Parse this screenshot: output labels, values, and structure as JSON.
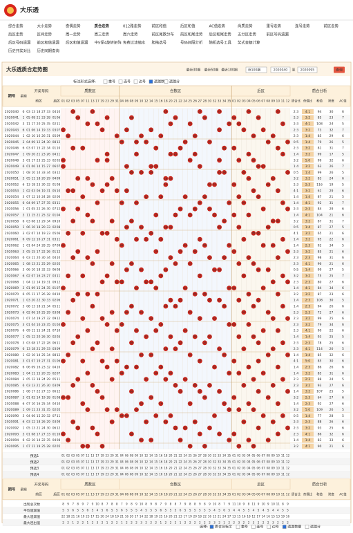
{
  "header": {
    "title": "大乐透"
  },
  "nav": [
    [
      "综合走势",
      "大小走势",
      "奇偶走势",
      "质合走势",
      "012路走势",
      "前区和值",
      "后区和值",
      "AC值走势",
      "尚质走势",
      "重号走势",
      "连号走势",
      "前区走势"
    ],
    [
      "后区走势",
      "区间走势",
      "周一走势",
      "周三走势",
      "周六走势",
      "前区尾数分布",
      "前区和尾走势",
      "后区和尾走势",
      "五分区走势",
      "前区号码遗漏"
    ],
    [
      "后区号码遗漏",
      "前区和值遗漏",
      "后区和值遗漏",
      "中5保4旋转矩阵",
      "免费过滤缩水",
      "胆拖选号",
      "号码间隔分析",
      "随机选号工具",
      "奖式金额计算"
    ],
    [
      "历史开奖对比",
      "历史同期查询"
    ]
  ],
  "panel": {
    "title": "大乐透质合走势图",
    "range_links": [
      "最近30期",
      "最近50期",
      "最近100期"
    ],
    "select": "近100期",
    "from": "2020040",
    "to_label": "至",
    "to": "2020095",
    "query": "查询",
    "mark_label": "标注形式选择:",
    "mark_options": [
      "重号",
      "连号",
      "边号",
      "遗漏数据",
      "遗漏分"
    ]
  },
  "table": {
    "head": {
      "issue": "期号",
      "week": "星期",
      "draw": "开奖号码",
      "front": "前区",
      "back": "后区",
      "zones": [
        "质数区",
        "合数区",
        "后区"
      ],
      "analysis": "质合分析",
      "analysis_cols": [
        "质合比",
        "奇偶比",
        "和值",
        "跨度",
        "AC值"
      ]
    },
    "columns": {
      "prime": [
        "01",
        "02",
        "03",
        "05",
        "07",
        "11",
        "13",
        "17",
        "19",
        "23",
        "29",
        "31"
      ],
      "composite": [
        "04",
        "06",
        "08",
        "09",
        "10",
        "12",
        "14",
        "15",
        "16",
        "18",
        "20",
        "21",
        "22",
        "24",
        "25",
        "26",
        "27",
        "28",
        "30",
        "32",
        "33",
        "34",
        "35"
      ],
      "back": [
        "01",
        "02",
        "03",
        "04",
        "05",
        "06",
        "07",
        "08",
        "09",
        "10",
        "11",
        "12"
      ]
    },
    "rows": [
      [
        "2020040",
        6,
        [
          "03",
          "13",
          "18",
          "27",
          "33"
        ],
        [
          "04",
          "10"
        ],
        "2:3",
        "4:1",
        94,
        30,
        6
      ],
      [
        "2020041",
        1,
        [
          "05",
          "08",
          "21",
          "23",
          "28"
        ],
        [
          "01",
          "06"
        ],
        "2:3",
        "3:2",
        85,
        23,
        7
      ],
      [
        "2020042",
        3,
        [
          "11",
          "17",
          "20",
          "25",
          "35"
        ],
        [
          "02",
          "11"
        ],
        "2:3",
        "4:1",
        108,
        24,
        5
      ],
      [
        "2020043",
        6,
        [
          "01",
          "06",
          "14",
          "19",
          "33"
        ],
        [
          "03",
          "07"
        ],
        "2:3",
        "3:2",
        73,
        32,
        7
      ],
      [
        "2020044",
        1,
        [
          "02",
          "10",
          "16",
          "26",
          "31"
        ],
        [
          "05",
          "09"
        ],
        "2:3",
        "1:4",
        85,
        29,
        6
      ],
      [
        "2020045",
        3,
        [
          "04",
          "09",
          "12",
          "24",
          "30"
        ],
        [
          "08",
          "12"
        ],
        "0:5",
        "1:4",
        79,
        26,
        5
      ],
      [
        "2020046",
        6,
        [
          "03",
          "07",
          "15",
          "22",
          "34"
        ],
        [
          "01",
          "10"
        ],
        "2:3",
        "3:2",
        81,
        31,
        7
      ],
      [
        "2020047",
        1,
        [
          "09",
          "20",
          "21",
          "23",
          "26"
        ],
        [
          "04",
          "11"
        ],
        "1:4",
        "3:2",
        99,
        17,
        5
      ],
      [
        "2020048",
        3,
        [
          "01",
          "17",
          "23",
          "25",
          "33"
        ],
        [
          "02",
          "05"
        ],
        "3:2",
        "5:0",
        99,
        32,
        6
      ],
      [
        "2020049",
        6,
        [
          "01",
          "06",
          "14",
          "15",
          "27"
        ],
        [
          "06",
          "07"
        ],
        "1:4",
        "3:2",
        63,
        26,
        7
      ],
      [
        "2020050",
        1,
        [
          "08",
          "10",
          "14",
          "33",
          "34"
        ],
        [
          "03",
          "12"
        ],
        "0:5",
        "1:4",
        99,
        26,
        5
      ],
      [
        "2020051",
        3,
        [
          "05",
          "11",
          "18",
          "20",
          "29"
        ],
        [
          "04",
          "09"
        ],
        "3:2",
        "3:2",
        83,
        24,
        6
      ],
      [
        "2020052",
        6,
        [
          "13",
          "18",
          "23",
          "30",
          "32"
        ],
        [
          "01",
          "08"
        ],
        "2:3",
        "2:3",
        116,
        19,
        5
      ],
      [
        "2020053",
        1,
        [
          "02",
          "03",
          "06",
          "19",
          "31"
        ],
        [
          "05",
          "10"
        ],
        "4:1",
        "3:2",
        61,
        29,
        6
      ],
      [
        "2020054",
        3,
        [
          "07",
          "12",
          "16",
          "24",
          "28"
        ],
        [
          "02",
          "06"
        ],
        "1:4",
        "1:4",
        87,
        21,
        5
      ],
      [
        "2020055",
        6,
        [
          "04",
          "09",
          "17",
          "27",
          "35"
        ],
        [
          "03",
          "11"
        ],
        "1:4",
        "4:1",
        92,
        31,
        7
      ],
      [
        "2020056",
        1,
        [
          "01",
          "05",
          "22",
          "26",
          "30"
        ],
        [
          "07",
          "12"
        ],
        "2:3",
        "2:3",
        84,
        29,
        6
      ],
      [
        "2020057",
        3,
        [
          "11",
          "15",
          "21",
          "25",
          "32"
        ],
        [
          "01",
          "04"
        ],
        "1:4",
        "4:1",
        104,
        21,
        6
      ],
      [
        "2020058",
        6,
        [
          "03",
          "08",
          "13",
          "29",
          "34"
        ],
        [
          "09",
          "10"
        ],
        "3:2",
        "3:2",
        87,
        31,
        7
      ],
      [
        "2020059",
        1,
        [
          "06",
          "10",
          "18",
          "20",
          "33"
        ],
        [
          "02",
          "08"
        ],
        "0:5",
        "1:4",
        87,
        27,
        5
      ],
      [
        "2020060",
        3,
        [
          "02",
          "07",
          "14",
          "19",
          "23"
        ],
        [
          "05",
          "06"
        ],
        "4:1",
        "3:2",
        65,
        21,
        6
      ],
      [
        "2020061",
        6,
        [
          "09",
          "12",
          "16",
          "27",
          "31"
        ],
        [
          "03",
          "11"
        ],
        "1:4",
        "3:2",
        95,
        22,
        6
      ],
      [
        "2020062",
        1,
        [
          "01",
          "04",
          "24",
          "28",
          "35"
        ],
        [
          "07",
          "09"
        ],
        "1:4",
        "2:3",
        92,
        34,
        5
      ],
      [
        "2020063",
        3,
        [
          "05",
          "15",
          "17",
          "22",
          "26"
        ],
        [
          "01",
          "12"
        ],
        "2:3",
        "3:2",
        85,
        21,
        6
      ],
      [
        "2020064",
        6,
        [
          "03",
          "11",
          "20",
          "30",
          "34"
        ],
        [
          "04",
          "10"
        ],
        "2:3",
        "2:3",
        98,
        31,
        6
      ],
      [
        "2020065",
        1,
        [
          "08",
          "13",
          "21",
          "25",
          "29"
        ],
        [
          "02",
          "05"
        ],
        "2:3",
        "4:1",
        96,
        21,
        6
      ],
      [
        "2020066",
        3,
        [
          "06",
          "10",
          "18",
          "32",
          "33"
        ],
        [
          "06",
          "08"
        ],
        "0:5",
        "1:4",
        99,
        27,
        5
      ],
      [
        "2020067",
        6,
        [
          "02",
          "07",
          "16",
          "23",
          "27"
        ],
        [
          "03",
          "11"
        ],
        "3:2",
        "3:2",
        75,
        25,
        7
      ],
      [
        "2020068",
        1,
        [
          "04",
          "12",
          "14",
          "19",
          "31"
        ],
        [
          "09",
          "12"
        ],
        "2:3",
        "2:3",
        80,
        27,
        6
      ],
      [
        "2020069",
        3,
        [
          "01",
          "09",
          "15",
          "24",
          "35"
        ],
        [
          "01",
          "07"
        ],
        "1:4",
        "4:1",
        84,
        34,
        6
      ],
      [
        "2020070",
        6,
        [
          "05",
          "11",
          "17",
          "26",
          "28"
        ],
        [
          "04",
          "10"
        ],
        "3:2",
        "3:2",
        87,
        23,
        6
      ],
      [
        "2020071",
        1,
        [
          "03",
          "20",
          "22",
          "30",
          "33"
        ],
        [
          "02",
          "06"
        ],
        "1:4",
        "2:3",
        108,
        30,
        5
      ],
      [
        "2020072",
        3,
        [
          "08",
          "13",
          "18",
          "21",
          "34"
        ],
        [
          "05",
          "11"
        ],
        "1:4",
        "2:3",
        94,
        26,
        6
      ],
      [
        "2020073",
        6,
        [
          "02",
          "06",
          "10",
          "25",
          "29"
        ],
        [
          "03",
          "08"
        ],
        "2:3",
        "2:3",
        72,
        27,
        6
      ],
      [
        "2020074",
        1,
        [
          "07",
          "14",
          "19",
          "27",
          "32"
        ],
        [
          "09",
          "12"
        ],
        "2:3",
        "3:2",
        99,
        25,
        6
      ],
      [
        "2020075",
        3,
        [
          "01",
          "04",
          "16",
          "23",
          "35"
        ],
        [
          "01",
          "04"
        ],
        "2:3",
        "3:2",
        79,
        34,
        6
      ],
      [
        "2020076",
        6,
        [
          "09",
          "11",
          "15",
          "24",
          "31"
        ],
        [
          "07",
          "10"
        ],
        "2:3",
        "4:1",
        90,
        22,
        6
      ],
      [
        "2020077",
        1,
        [
          "05",
          "12",
          "20",
          "26",
          "30"
        ],
        [
          "02",
          "05"
        ],
        "1:4",
        "1:4",
        93,
        25,
        5
      ],
      [
        "2020078",
        3,
        [
          "03",
          "08",
          "17",
          "22",
          "28"
        ],
        [
          "06",
          "11"
        ],
        "2:3",
        "2:3",
        78,
        25,
        6
      ],
      [
        "2020079",
        6,
        [
          "13",
          "18",
          "21",
          "29",
          "33"
        ],
        [
          "03",
          "09"
        ],
        "2:3",
        "4:1",
        114,
        20,
        5
      ],
      [
        "2020080",
        1,
        [
          "02",
          "10",
          "14",
          "25",
          "34"
        ],
        [
          "08",
          "12"
        ],
        "1:4",
        "1:4",
        85,
        32,
        6
      ],
      [
        "2020081",
        3,
        [
          "01",
          "07",
          "19",
          "27",
          "31"
        ],
        [
          "01",
          "06"
        ],
        "4:1",
        "5:0",
        85,
        30,
        6
      ],
      [
        "2020082",
        6,
        [
          "06",
          "09",
          "16",
          "23",
          "32"
        ],
        [
          "04",
          "10"
        ],
        "1:4",
        "2:3",
        86,
        26,
        6
      ],
      [
        "2020083",
        1,
        [
          "04",
          "11",
          "15",
          "20",
          "35"
        ],
        [
          "02",
          "07"
        ],
        "1:4",
        "3:2",
        85,
        31,
        6
      ],
      [
        "2020084",
        3,
        [
          "05",
          "12",
          "18",
          "24",
          "29"
        ],
        [
          "05",
          "11"
        ],
        "2:3",
        "2:3",
        88,
        24,
        5
      ],
      [
        "2020085",
        6,
        [
          "03",
          "13",
          "21",
          "26",
          "30"
        ],
        [
          "03",
          "09"
        ],
        "2:3",
        "3:2",
        93,
        27,
        6
      ],
      [
        "2020086",
        1,
        [
          "08",
          "17",
          "22",
          "27",
          "33"
        ],
        [
          "06",
          "12"
        ],
        "1:4",
        "3:2",
        107,
        25,
        5
      ],
      [
        "2020087",
        3,
        [
          "01",
          "02",
          "14",
          "19",
          "28"
        ],
        [
          "01",
          "08"
        ],
        "3:2",
        "2:3",
        64,
        27,
        6
      ],
      [
        "2020088",
        6,
        [
          "07",
          "10",
          "16",
          "25",
          "34"
        ],
        [
          "04",
          "10"
        ],
        "1:4",
        "2:3",
        92,
        27,
        6
      ],
      [
        "2020089",
        1,
        [
          "09",
          "11",
          "23",
          "31",
          "35"
        ],
        [
          "02",
          "05"
        ],
        "3:2",
        "5:0",
        109,
        26,
        5
      ],
      [
        "2020090",
        3,
        [
          "04",
          "06",
          "15",
          "20",
          "32"
        ],
        [
          "07",
          "11"
        ],
        "0:5",
        "1:4",
        77,
        28,
        5
      ],
      [
        "2020091",
        6,
        [
          "03",
          "12",
          "18",
          "26",
          "29"
        ],
        [
          "03",
          "09"
        ],
        "2:3",
        "2:3",
        88,
        26,
        6
      ],
      [
        "2020092",
        1,
        [
          "05",
          "13",
          "21",
          "24",
          "30"
        ],
        [
          "06",
          "12"
        ],
        "2:3",
        "3:2",
        93,
        25,
        6
      ],
      [
        "2020093",
        3,
        [
          "01",
          "08",
          "17",
          "27",
          "33"
        ],
        [
          "01",
          "10"
        ],
        "2:3",
        "4:1",
        86,
        32,
        6
      ],
      [
        "2020094",
        6,
        [
          "02",
          "10",
          "14",
          "22",
          "35"
        ],
        [
          "04",
          "08"
        ],
        "1:4",
        "1:4",
        83,
        33,
        6
      ],
      [
        "2020095",
        1,
        [
          "07",
          "11",
          "19",
          "25",
          "28"
        ],
        [
          "02",
          "05"
        ],
        "3:2",
        "4:1",
        90,
        21,
        6
      ]
    ],
    "preselect": [
      "预选1",
      "预选2",
      "预选3",
      "预选4"
    ],
    "stats": [
      {
        "name": "出现总次数",
        "values": [
          8,
          9,
          7,
          8,
          9,
          7,
          9,
          10,
          8,
          7,
          8,
          8,
          7,
          9,
          8,
          9,
          10,
          8,
          9,
          8,
          7,
          9,
          8,
          8,
          7,
          9,
          8,
          8,
          9,
          8,
          9,
          10,
          8,
          7,
          9,
          11,
          10,
          9,
          8,
          11,
          9,
          10,
          9,
          10,
          11,
          8,
          9
        ]
      },
      {
        "name": "平均遗漏值",
        "values": [
          5,
          5,
          6,
          5,
          5,
          6,
          5,
          4,
          5,
          6,
          5,
          5,
          6,
          5,
          5,
          5,
          4,
          5,
          5,
          5,
          6,
          5,
          5,
          5,
          6,
          5,
          5,
          5,
          5,
          5,
          5,
          4,
          5,
          6,
          5,
          4,
          4,
          5,
          5,
          4,
          5,
          4,
          5,
          4,
          4,
          5,
          5
        ]
      },
      {
        "name": "最大遗漏值",
        "values": [
          22,
          18,
          21,
          16,
          19,
          23,
          17,
          15,
          20,
          24,
          18,
          19,
          21,
          16,
          20,
          17,
          14,
          22,
          18,
          19,
          25,
          16,
          20,
          21,
          23,
          17,
          19,
          20,
          18,
          22,
          16,
          15,
          21,
          24,
          17,
          13,
          15,
          16,
          18,
          12,
          17,
          14,
          16,
          15,
          13,
          19,
          16
        ]
      },
      {
        "name": "最大连出值",
        "values": [
          2,
          2,
          1,
          2,
          2,
          1,
          2,
          3,
          2,
          1,
          2,
          2,
          1,
          2,
          2,
          2,
          3,
          2,
          2,
          2,
          1,
          2,
          2,
          2,
          1,
          2,
          2,
          2,
          2,
          2,
          2,
          3,
          2,
          1,
          2,
          2,
          3,
          2,
          2,
          3,
          2,
          2,
          2,
          3,
          2,
          2,
          2
        ]
      }
    ]
  },
  "footer": {
    "label": "选择:",
    "options": [
      "质合旧标示",
      "重号",
      "连号",
      "边号",
      "遗漏数据",
      "遗漏分"
    ]
  }
}
